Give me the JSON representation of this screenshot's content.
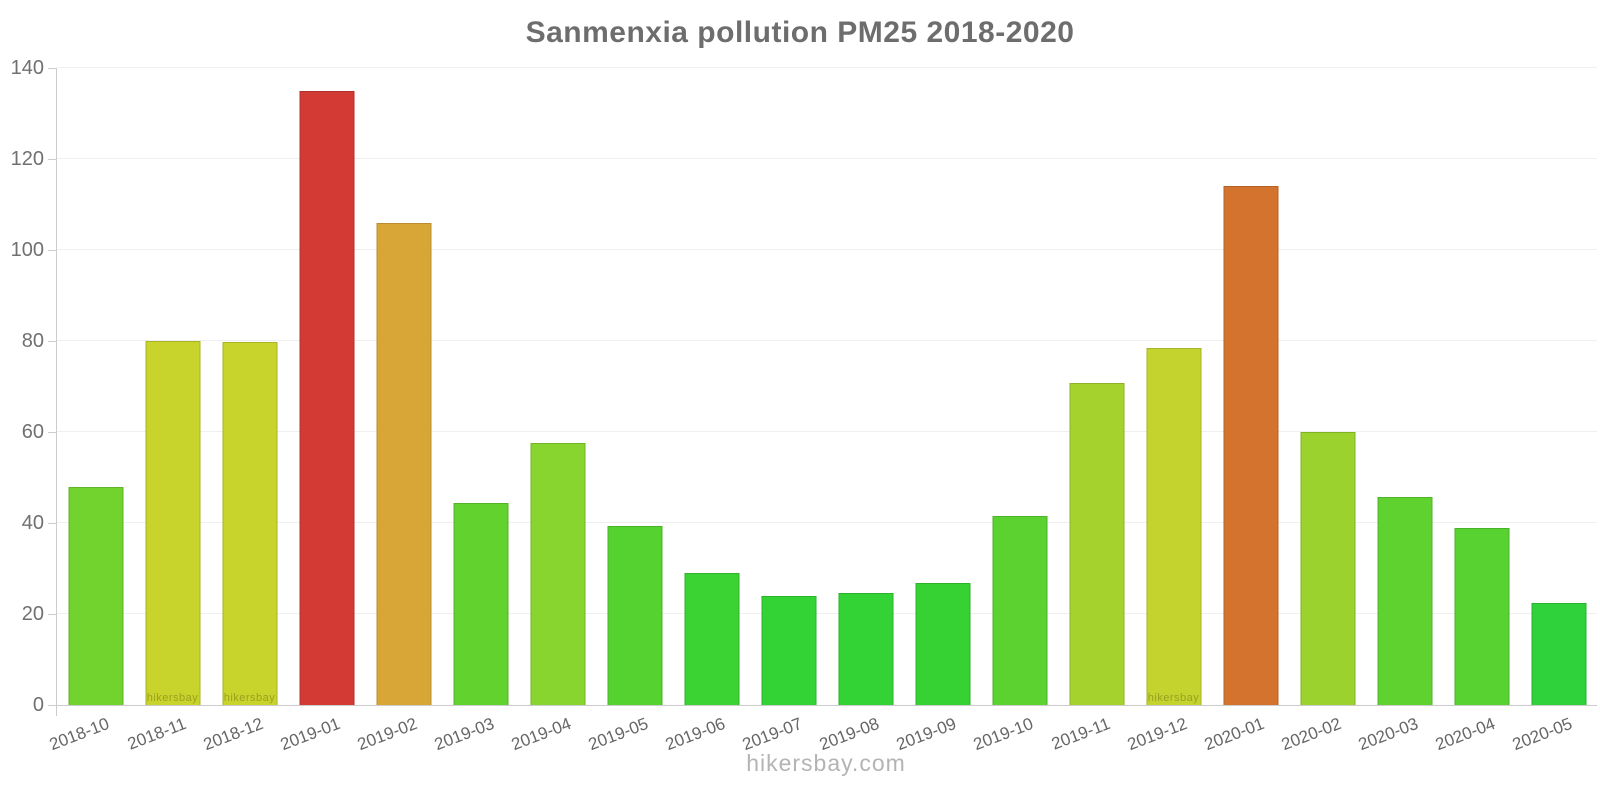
{
  "title": "Sanmenxia pollution PM25 2018-2020",
  "watermark": "hikersbay.com",
  "bar_watermark_text": "hikersbay",
  "chart_data": {
    "type": "bar",
    "title": "Sanmenxia pollution PM25 2018-2020",
    "xlabel": "",
    "ylabel": "",
    "ylim": [
      0,
      140
    ],
    "yticks": [
      0,
      20,
      40,
      60,
      80,
      100,
      120,
      140
    ],
    "grid": "horizontal",
    "legend": "none",
    "categories": [
      "2018-10",
      "2018-11",
      "2018-12",
      "2019-01",
      "2019-02",
      "2019-03",
      "2019-04",
      "2019-05",
      "2019-06",
      "2019-07",
      "2019-08",
      "2019-09",
      "2019-10",
      "2019-11",
      "2019-12",
      "2020-01",
      "2020-02",
      "2020-03",
      "2020-04",
      "2020-05"
    ],
    "values": [
      48,
      80,
      79.7,
      135,
      106,
      44.5,
      57.5,
      39.3,
      29,
      24,
      24.7,
      26.8,
      41.5,
      70.7,
      78.4,
      114,
      60,
      45.7,
      39,
      22.5
    ],
    "bar_colors": [
      "#72D22E",
      "#C8D32B",
      "#C8D32B",
      "#D33A34",
      "#D8A637",
      "#62D22F",
      "#87D52E",
      "#55D22F",
      "#3BD233",
      "#33D235",
      "#33D235",
      "#36D233",
      "#5BD22F",
      "#A6D22E",
      "#C4D32E",
      "#D4732E",
      "#9BD22E",
      "#5FD22F",
      "#58D230",
      "#2FD23B"
    ],
    "bars_with_inner_watermark": [
      1,
      2,
      14
    ]
  },
  "style": {
    "axis_color": "#cccccc",
    "grid_color": "#efefef",
    "title_color": "#6d6d6d",
    "tick_label_color": "#707070",
    "x_label_color": "#666666",
    "watermark_color": "#b4b4b4"
  }
}
